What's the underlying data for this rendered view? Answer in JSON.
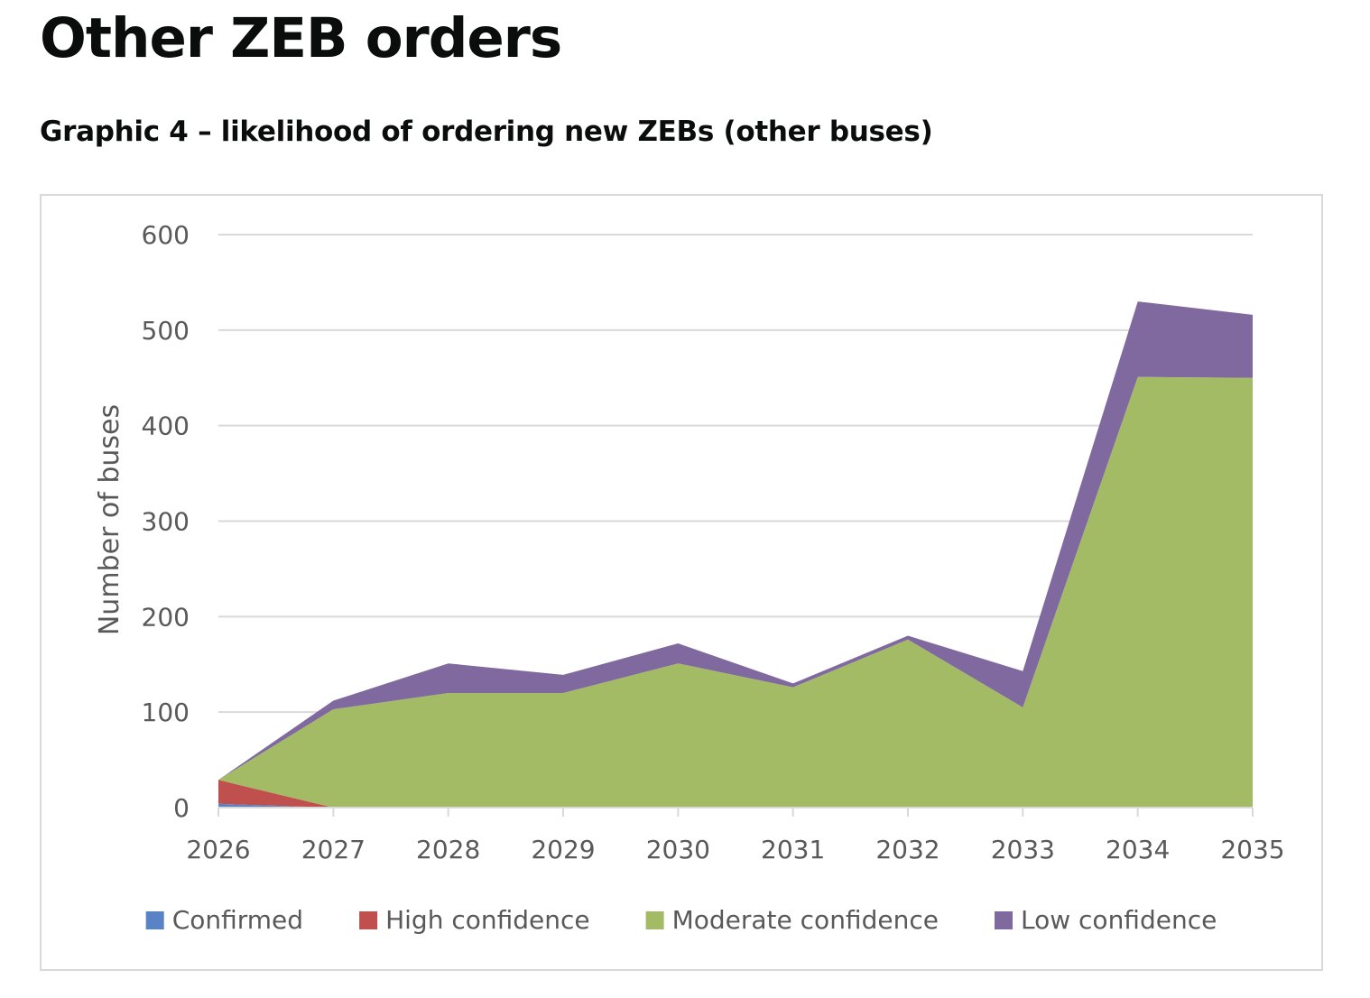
{
  "page": {
    "title": "Other ZEB orders",
    "chart_heading": "Graphic 4 – likelihood of ordering new ZEBs (other buses)"
  },
  "chart_data": {
    "type": "area",
    "stacked": true,
    "title": "",
    "xlabel": "",
    "ylabel": "Number of buses",
    "categories": [
      "2026",
      "2027",
      "2028",
      "2029",
      "2030",
      "2031",
      "2032",
      "2033",
      "2034",
      "2035"
    ],
    "ylim": [
      0,
      600
    ],
    "yticks": [
      0,
      100,
      200,
      300,
      400,
      500,
      600
    ],
    "grid": true,
    "legend_position": "bottom",
    "series": [
      {
        "name": "Confirmed",
        "color": "#5a83c5",
        "values": [
          4,
          0,
          0,
          0,
          0,
          0,
          0,
          0,
          0,
          0
        ]
      },
      {
        "name": "High confidence",
        "color": "#c0504d",
        "values": [
          25,
          0,
          0,
          0,
          0,
          0,
          0,
          0,
          0,
          0
        ]
      },
      {
        "name": "Moderate confidence",
        "color": "#a3bb65",
        "values": [
          0,
          103,
          120,
          120,
          151,
          126,
          176,
          105,
          451,
          450
        ]
      },
      {
        "name": "Low confidence",
        "color": "#7f699f",
        "values": [
          0,
          9,
          31,
          19,
          21,
          4,
          4,
          38,
          79,
          66
        ]
      }
    ]
  }
}
